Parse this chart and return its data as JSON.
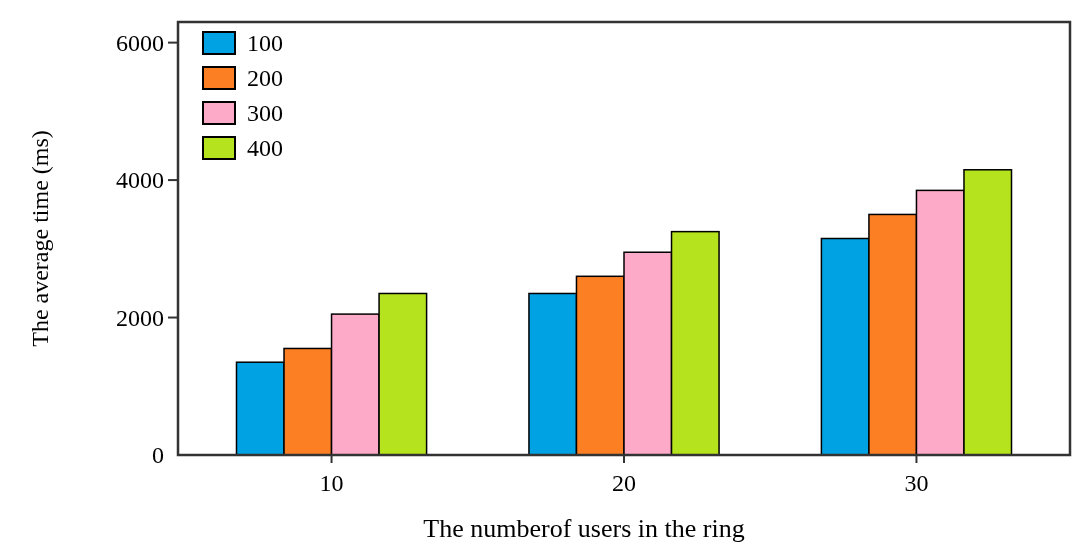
{
  "chart_data": {
    "type": "bar",
    "xlabel": "The numberof users in the ring",
    "ylabel": "The average time (ms)",
    "categories": [
      "10",
      "20",
      "30"
    ],
    "series": [
      {
        "name": "100",
        "color": "#00a2e3",
        "values": [
          1350,
          2350,
          3150
        ]
      },
      {
        "name": "200",
        "color": "#fd7f24",
        "values": [
          1550,
          2600,
          3500
        ]
      },
      {
        "name": "300",
        "color": "#fdaac8",
        "values": [
          2050,
          2950,
          3850
        ]
      },
      {
        "name": "400",
        "color": "#b5e31e",
        "values": [
          2350,
          3250,
          4150
        ]
      }
    ],
    "ylim": [
      0,
      6300
    ],
    "yticks": [
      0,
      2000,
      4000,
      6000
    ],
    "grid": false,
    "legend": "top left"
  }
}
